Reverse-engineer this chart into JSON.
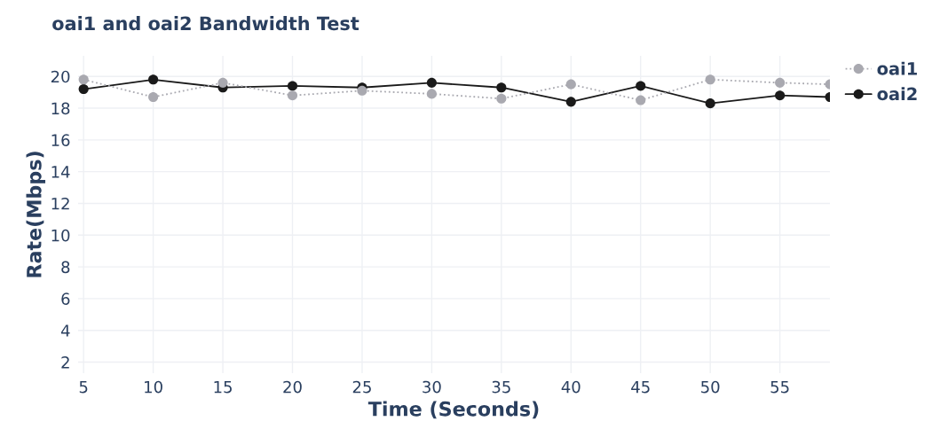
{
  "chart_data": {
    "type": "line",
    "title": "oai1 and oai2 Bandwidth Test",
    "xlabel": "Time (Seconds)",
    "ylabel": "Rate(Mbps)",
    "x": [
      5,
      10,
      15,
      20,
      25,
      30,
      35,
      40,
      45,
      50,
      55,
      58.6
    ],
    "series": [
      {
        "name": "oai1",
        "color": "#a9a9b0",
        "line_style": "dotted",
        "values": [
          19.8,
          18.7,
          19.6,
          18.8,
          19.1,
          18.9,
          18.6,
          19.5,
          18.5,
          19.8,
          19.6,
          19.5
        ]
      },
      {
        "name": "oai2",
        "color": "#1a1a1a",
        "line_style": "solid",
        "values": [
          19.2,
          19.8,
          19.3,
          19.4,
          19.3,
          19.6,
          19.3,
          18.4,
          19.4,
          18.3,
          18.8,
          18.7
        ]
      }
    ],
    "xlim": [
      4.6,
      58.6
    ],
    "ylim": [
      1.3,
      21.3
    ],
    "xticks": [
      5,
      10,
      15,
      20,
      25,
      30,
      35,
      40,
      45,
      50,
      55
    ],
    "yticks": [
      2,
      4,
      6,
      8,
      10,
      12,
      14,
      16,
      18,
      20
    ],
    "grid": true,
    "legend": "top right",
    "marker": "circle"
  }
}
